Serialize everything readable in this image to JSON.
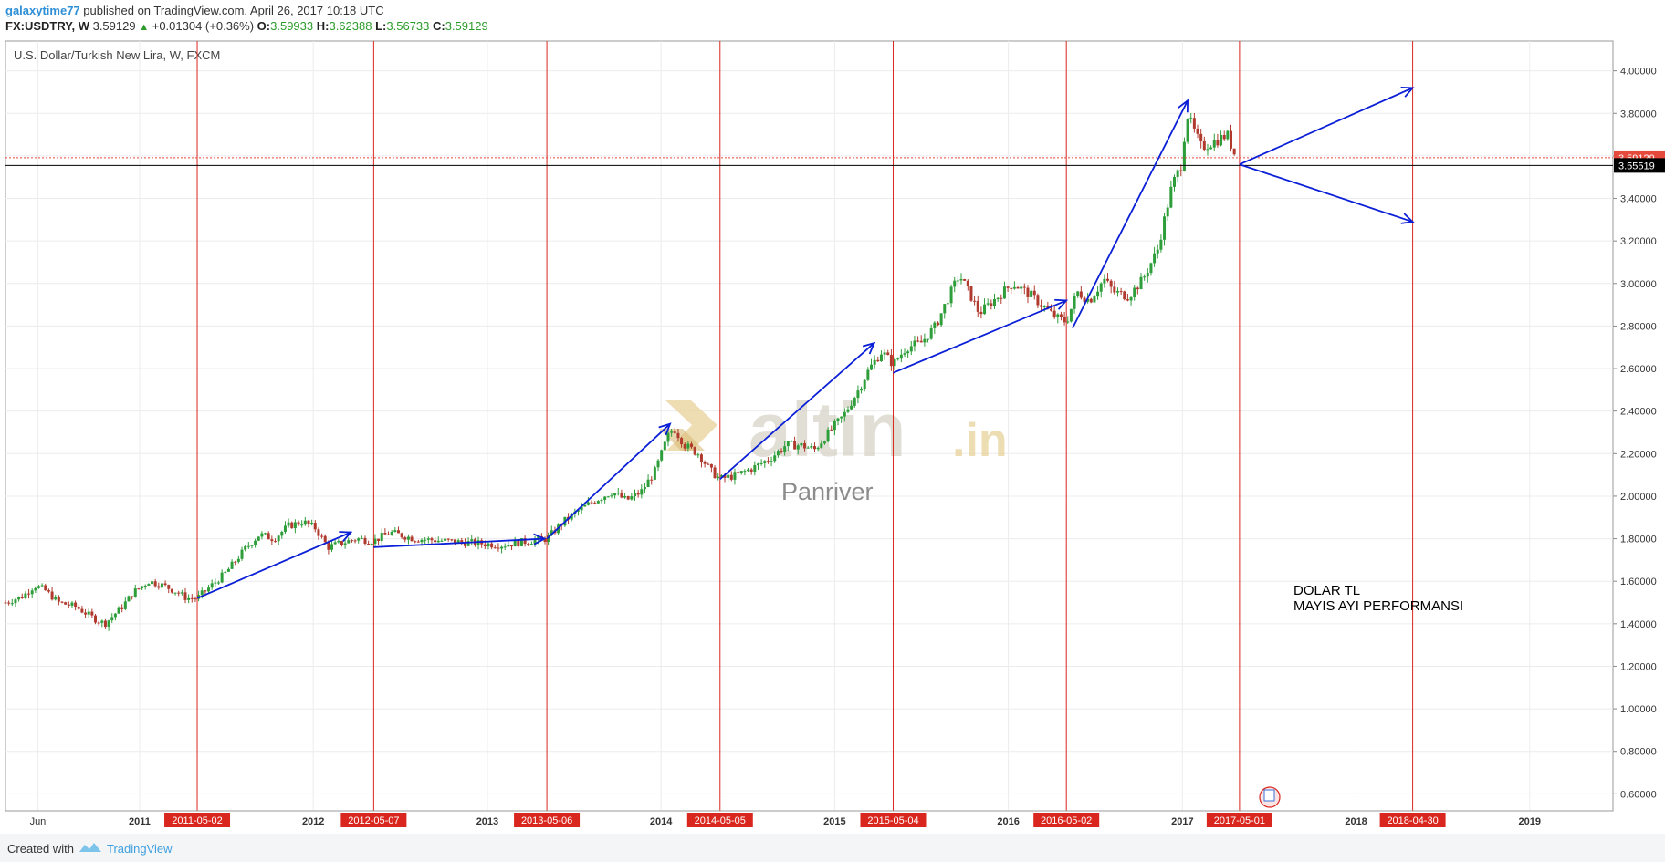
{
  "header": {
    "author": "galaxytime77",
    "published_text": "published on TradingView.com, April 26, 2017 10:18 UTC",
    "symbol": "FX:USDTRY, W",
    "price": "3.59129",
    "change": "+0.01304 (+0.36%)",
    "o_label": "O:",
    "o_value": "3.59933",
    "h_label": "H:",
    "h_value": "3.62388",
    "l_label": "L:",
    "l_value": "3.56733",
    "c_label": "C:",
    "c_value": "3.59129"
  },
  "chart_title": "U.S. Dollar/Turkish New Lira, W, FXCM",
  "watermark": {
    "brand": "altin",
    "suffix": ".in",
    "sub": "Panriver"
  },
  "annotation": {
    "line1": "DOLAR TL",
    "line2": "MAYIS AYI PERFORMANSI"
  },
  "footer": {
    "created": "Created with",
    "brand": "TradingView"
  },
  "colors": {
    "up": "#2e9e3a",
    "down": "#b03a2e",
    "vline": "#d9271f",
    "arrow": "#0a1fd6",
    "last_price_bg": "#e64a3c",
    "crosshair_bg": "#000000"
  },
  "chart_data": {
    "type": "candlestick",
    "title": "U.S. Dollar/Turkish New Lira, W, FXCM",
    "symbol": "FX:USDTRY",
    "timeframe": "W",
    "ylim": [
      0.52,
      4.14
    ],
    "xlim": [
      "2010-03-25",
      "2019-06-25"
    ],
    "y_ticks": [
      "4.00000",
      "3.80000",
      "3.60000",
      "3.40000",
      "3.20000",
      "3.00000",
      "2.80000",
      "2.60000",
      "2.40000",
      "2.20000",
      "2.00000",
      "1.80000",
      "1.60000",
      "1.40000",
      "1.20000",
      "1.00000",
      "0.80000",
      "0.60000"
    ],
    "x_ticks": [
      {
        "label": "Jun",
        "date": "2010-06-01"
      },
      {
        "label": "2011",
        "date": "2011-01-01"
      },
      {
        "label": "2012",
        "date": "2012-01-01"
      },
      {
        "label": "2013",
        "date": "2013-01-01"
      },
      {
        "label": "2014",
        "date": "2014-01-01"
      },
      {
        "label": "2015",
        "date": "2015-01-01"
      },
      {
        "label": "2016",
        "date": "2016-01-01"
      },
      {
        "label": "2017",
        "date": "2017-01-01"
      },
      {
        "label": "2018",
        "date": "2018-01-01"
      },
      {
        "label": "2019",
        "date": "2019-01-01"
      }
    ],
    "vertical_markers": [
      "2011-05-02",
      "2012-05-07",
      "2013-05-06",
      "2014-05-05",
      "2015-05-04",
      "2016-05-02",
      "2017-05-01",
      "2018-04-30"
    ],
    "last_price": "3.59129",
    "crosshair_price": "3.55519",
    "price_path": [
      [
        "2010-03-25",
        1.5
      ],
      [
        "2010-05-01",
        1.53
      ],
      [
        "2010-05-25",
        1.58
      ],
      [
        "2010-06-15",
        1.56
      ],
      [
        "2010-07-15",
        1.5
      ],
      [
        "2010-08-20",
        1.48
      ],
      [
        "2010-10-01",
        1.42
      ],
      [
        "2010-10-20",
        1.4
      ],
      [
        "2010-11-25",
        1.48
      ],
      [
        "2010-12-20",
        1.55
      ],
      [
        "2011-01-20",
        1.6
      ],
      [
        "2011-02-20",
        1.58
      ],
      [
        "2011-03-20",
        1.55
      ],
      [
        "2011-04-10",
        1.52
      ],
      [
        "2011-05-02",
        1.52
      ],
      [
        "2011-06-01",
        1.58
      ],
      [
        "2011-07-01",
        1.64
      ],
      [
        "2011-08-10",
        1.75
      ],
      [
        "2011-09-10",
        1.82
      ],
      [
        "2011-10-10",
        1.8
      ],
      [
        "2011-11-10",
        1.86
      ],
      [
        "2011-12-10",
        1.88
      ],
      [
        "2012-01-05",
        1.85
      ],
      [
        "2012-02-01",
        1.76
      ],
      [
        "2012-03-01",
        1.78
      ],
      [
        "2012-04-01",
        1.8
      ],
      [
        "2012-05-07",
        1.79
      ],
      [
        "2012-06-10",
        1.83
      ],
      [
        "2012-08-01",
        1.8
      ],
      [
        "2012-10-01",
        1.79
      ],
      [
        "2012-12-01",
        1.78
      ],
      [
        "2013-02-01",
        1.77
      ],
      [
        "2013-04-01",
        1.79
      ],
      [
        "2013-05-06",
        1.8
      ],
      [
        "2013-06-10",
        1.88
      ],
      [
        "2013-07-10",
        1.93
      ],
      [
        "2013-08-15",
        1.98
      ],
      [
        "2013-09-20",
        2.02
      ],
      [
        "2013-10-20",
        1.98
      ],
      [
        "2013-11-20",
        2.02
      ],
      [
        "2013-12-20",
        2.12
      ],
      [
        "2014-01-15",
        2.28
      ],
      [
        "2014-01-28",
        2.32
      ],
      [
        "2014-02-20",
        2.24
      ],
      [
        "2014-03-20",
        2.2
      ],
      [
        "2014-04-15",
        2.12
      ],
      [
        "2014-05-05",
        2.08
      ],
      [
        "2014-06-10",
        2.1
      ],
      [
        "2014-07-20",
        2.14
      ],
      [
        "2014-08-20",
        2.18
      ],
      [
        "2014-09-20",
        2.24
      ],
      [
        "2014-10-20",
        2.24
      ],
      [
        "2014-11-20",
        2.22
      ],
      [
        "2014-12-20",
        2.3
      ],
      [
        "2015-01-20",
        2.38
      ],
      [
        "2015-02-20",
        2.5
      ],
      [
        "2015-03-15",
        2.6
      ],
      [
        "2015-04-10",
        2.68
      ],
      [
        "2015-05-04",
        2.62
      ],
      [
        "2015-06-01",
        2.7
      ],
      [
        "2015-07-01",
        2.72
      ],
      [
        "2015-08-01",
        2.8
      ],
      [
        "2015-08-25",
        2.92
      ],
      [
        "2015-09-20",
        3.04
      ],
      [
        "2015-10-10",
        2.96
      ],
      [
        "2015-11-01",
        2.86
      ],
      [
        "2015-12-01",
        2.92
      ],
      [
        "2016-01-10",
        3.0
      ],
      [
        "2016-01-25",
        2.98
      ],
      [
        "2016-02-20",
        2.94
      ],
      [
        "2016-03-20",
        2.88
      ],
      [
        "2016-04-10",
        2.84
      ],
      [
        "2016-05-02",
        2.82
      ],
      [
        "2016-05-25",
        2.96
      ],
      [
        "2016-06-20",
        2.92
      ],
      [
        "2016-07-20",
        3.02
      ],
      [
        "2016-08-10",
        2.96
      ],
      [
        "2016-09-10",
        2.94
      ],
      [
        "2016-10-10",
        3.02
      ],
      [
        "2016-11-10",
        3.16
      ],
      [
        "2016-12-10",
        3.46
      ],
      [
        "2016-12-30",
        3.56
      ],
      [
        "2017-01-10",
        3.8
      ],
      [
        "2017-01-25",
        3.72
      ],
      [
        "2017-02-10",
        3.64
      ],
      [
        "2017-03-01",
        3.66
      ],
      [
        "2017-03-20",
        3.68
      ],
      [
        "2017-04-05",
        3.7
      ],
      [
        "2017-04-24",
        3.59
      ]
    ],
    "trend_arrows": [
      {
        "from": [
          "2011-05-02",
          1.52
        ],
        "to": [
          "2012-03-20",
          1.83
        ]
      },
      {
        "from": [
          "2012-05-07",
          1.76
        ],
        "to": [
          "2013-05-01",
          1.8
        ]
      },
      {
        "from": [
          "2013-05-06",
          1.8
        ],
        "to": [
          "2014-01-20",
          2.34
        ]
      },
      {
        "from": [
          "2014-05-05",
          2.08
        ],
        "to": [
          "2015-03-25",
          2.72
        ]
      },
      {
        "from": [
          "2015-05-04",
          2.58
        ],
        "to": [
          "2016-05-02",
          2.92
        ]
      },
      {
        "from": [
          "2016-05-15",
          2.79
        ],
        "to": [
          "2017-01-12",
          3.86
        ]
      },
      {
        "from": [
          "2017-05-01",
          3.56
        ],
        "to": [
          "2018-04-30",
          3.92
        ]
      },
      {
        "from": [
          "2017-05-01",
          3.56
        ],
        "to": [
          "2018-04-30",
          3.29
        ]
      }
    ]
  }
}
